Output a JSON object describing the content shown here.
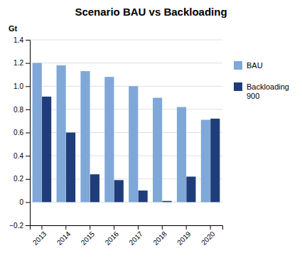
{
  "chart_data": {
    "type": "bar",
    "title": "Scenario BAU vs Backloading",
    "y_label": "Gt",
    "categories": [
      "2013",
      "2014",
      "2015",
      "2016",
      "2017",
      "2018",
      "2019",
      "2020"
    ],
    "series": [
      {
        "name": "BAU",
        "color": "#7FA8D8",
        "values": [
          1.2,
          1.18,
          1.13,
          1.08,
          1.0,
          0.9,
          0.82,
          0.71
        ]
      },
      {
        "name": "Backloading\n900",
        "color": "#1F3D7A",
        "values": [
          0.91,
          0.6,
          0.24,
          0.19,
          0.1,
          0.01,
          0.22,
          0.72
        ]
      }
    ],
    "ylim": [
      -0.2,
      1.4
    ],
    "yticks": [
      {
        "value": -0.2,
        "label": "−0.2"
      },
      0,
      0.2,
      0.4,
      0.6,
      0.8,
      {
        "value": 1.0,
        "label": "1.0"
      },
      1.2,
      1.4
    ],
    "grid": true,
    "legend": "right"
  }
}
